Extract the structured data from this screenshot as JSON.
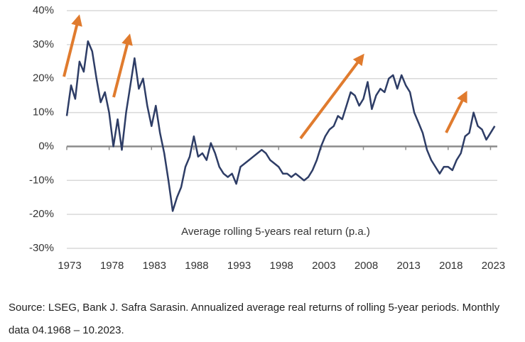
{
  "chart_data": {
    "type": "line",
    "annotation": "Average rolling 5-years real return (p.a.)",
    "source": "Source: LSEG, Bank J. Safra Sarasin. Annualized average real returns of rolling 5-year periods. Monthly data 04.1968 – 10.2023.",
    "color": "#2e3d66",
    "x": [
      1973.0,
      1973.5,
      1974.0,
      1974.5,
      1975.0,
      1975.5,
      1976.0,
      1976.5,
      1977.0,
      1977.5,
      1978.0,
      1978.5,
      1979.0,
      1979.5,
      1980.0,
      1980.5,
      1981.0,
      1981.5,
      1982.0,
      1982.5,
      1983.0,
      1983.5,
      1984.0,
      1984.5,
      1985.0,
      1985.5,
      1986.0,
      1986.5,
      1987.0,
      1987.5,
      1988.0,
      1988.5,
      1989.0,
      1989.5,
      1990.0,
      1990.5,
      1991.0,
      1991.5,
      1992.0,
      1992.5,
      1993.0,
      1993.5,
      1994.0,
      1994.5,
      1995.0,
      1995.5,
      1996.0,
      1996.5,
      1997.0,
      1997.5,
      1998.0,
      1998.5,
      1999.0,
      1999.5,
      2000.0,
      2000.5,
      2001.0,
      2001.5,
      2002.0,
      2002.5,
      2003.0,
      2003.5,
      2004.0,
      2004.5,
      2005.0,
      2005.5,
      2006.0,
      2006.5,
      2007.0,
      2007.5,
      2008.0,
      2008.5,
      2009.0,
      2009.5,
      2010.0,
      2010.5,
      2011.0,
      2011.5,
      2012.0,
      2012.5,
      2013.0,
      2013.5,
      2014.0,
      2014.5,
      2015.0,
      2015.5,
      2016.0,
      2016.5,
      2017.0,
      2017.5,
      2018.0,
      2018.5,
      2019.0,
      2019.5,
      2020.0,
      2020.5,
      2021.0,
      2021.5,
      2022.0,
      2022.5,
      2023.0,
      2023.5
    ],
    "values": [
      9,
      18,
      14,
      25,
      22,
      31,
      28,
      20,
      13,
      16,
      10,
      0,
      8,
      -1,
      10,
      18,
      26,
      17,
      20,
      12,
      6,
      12,
      4,
      -2,
      -10,
      -19,
      -15,
      -12,
      -6,
      -3,
      3,
      -3,
      -2,
      -4,
      1,
      -2,
      -6,
      -8,
      -9,
      -8,
      -11,
      -6,
      -5,
      -4,
      -3,
      -2,
      -1,
      -2,
      -4,
      -5,
      -6,
      -8,
      -8,
      -9,
      -8,
      -9,
      -10,
      -9,
      -7,
      -4,
      0,
      3,
      5,
      6,
      9,
      8,
      12,
      16,
      15,
      12,
      14,
      19,
      11,
      15,
      17,
      16,
      20,
      21,
      17,
      21,
      18,
      16,
      10,
      7,
      4,
      -1,
      -4,
      -6,
      -8,
      -6,
      -6,
      -7,
      -4,
      -2,
      3,
      4,
      10,
      6,
      5,
      2,
      4,
      6
    ],
    "xlim": [
      1973,
      2023.8
    ],
    "xticks": [
      1973,
      1978,
      1983,
      1988,
      1993,
      1998,
      2003,
      2008,
      2013,
      2018,
      2023
    ],
    "ylim": [
      -30,
      40
    ],
    "yticks": [
      {
        "value": -30,
        "label": "-30%"
      },
      {
        "value": -20,
        "label": "-20%"
      },
      {
        "value": -10,
        "label": "-10%"
      },
      {
        "value": 0,
        "label": "0%"
      },
      {
        "value": 10,
        "label": "10%"
      },
      {
        "value": 20,
        "label": "20%"
      },
      {
        "value": 30,
        "label": "30%"
      },
      {
        "value": 40,
        "label": "40%"
      }
    ],
    "grid": true
  }
}
